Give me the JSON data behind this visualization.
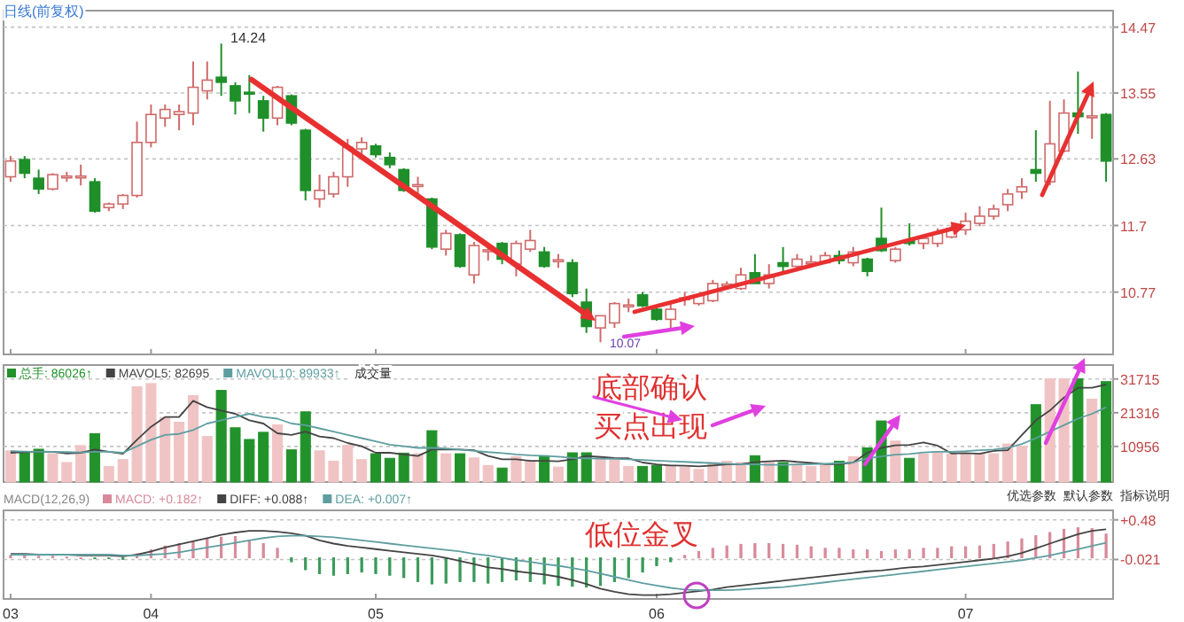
{
  "chart_data": [
    {
      "type": "candlestick",
      "categories": [
        "03",
        null,
        null,
        null,
        null,
        null,
        null,
        null,
        null,
        null,
        "04",
        null,
        null,
        null,
        null,
        null,
        null,
        null,
        null,
        null,
        null,
        null,
        null,
        null,
        null,
        null,
        "05",
        null,
        null,
        null,
        null,
        null,
        null,
        null,
        null,
        null,
        null,
        null,
        null,
        null,
        null,
        null,
        null,
        null,
        null,
        null,
        "06",
        null,
        null,
        null,
        null,
        null,
        null,
        null,
        null,
        null,
        null,
        null,
        null,
        null,
        null,
        null,
        null,
        null,
        null,
        null,
        null,
        null,
        "07",
        null,
        null,
        null,
        null,
        null,
        null,
        null,
        null,
        null,
        null
      ],
      "ohlc": [
        [
          12.38,
          12.67,
          12.31,
          12.6
        ],
        [
          12.62,
          12.67,
          12.36,
          12.43
        ],
        [
          12.36,
          12.48,
          12.14,
          12.21
        ],
        [
          12.21,
          12.43,
          12.19,
          12.41
        ],
        [
          12.38,
          12.45,
          12.31,
          12.39
        ],
        [
          12.38,
          12.55,
          12.26,
          12.39
        ],
        [
          12.31,
          12.36,
          11.88,
          11.9
        ],
        [
          11.95,
          12.02,
          11.9,
          12.0
        ],
        [
          12.0,
          12.14,
          11.93,
          12.12
        ],
        [
          12.12,
          13.15,
          12.09,
          12.86
        ],
        [
          12.86,
          13.39,
          12.79,
          13.25
        ],
        [
          13.2,
          13.39,
          13.08,
          13.32
        ],
        [
          13.25,
          13.39,
          13.03,
          13.29
        ],
        [
          13.27,
          13.99,
          13.1,
          13.63
        ],
        [
          13.58,
          13.99,
          13.46,
          13.73
        ],
        [
          13.77,
          14.24,
          13.51,
          13.7
        ],
        [
          13.65,
          13.7,
          13.25,
          13.44
        ],
        [
          13.56,
          13.8,
          13.27,
          13.55
        ],
        [
          13.44,
          13.51,
          13.01,
          13.2
        ],
        [
          13.2,
          13.65,
          13.1,
          13.63
        ],
        [
          13.51,
          13.53,
          13.1,
          13.13
        ],
        [
          13.03,
          13.05,
          12.05,
          12.19
        ],
        [
          12.07,
          12.41,
          11.95,
          12.19
        ],
        [
          12.14,
          12.45,
          12.09,
          12.38
        ],
        [
          12.38,
          12.91,
          12.24,
          12.79
        ],
        [
          12.77,
          12.93,
          12.67,
          12.86
        ],
        [
          12.81,
          12.84,
          12.65,
          12.69
        ],
        [
          12.65,
          12.72,
          12.5,
          12.55
        ],
        [
          12.48,
          12.5,
          12.17,
          12.19
        ],
        [
          12.26,
          12.38,
          12.14,
          12.27
        ],
        [
          12.07,
          12.09,
          11.37,
          11.4
        ],
        [
          11.37,
          11.64,
          11.28,
          11.59
        ],
        [
          11.57,
          11.59,
          11.11,
          11.13
        ],
        [
          11.01,
          11.47,
          10.89,
          11.42
        ],
        [
          11.35,
          11.45,
          11.21,
          11.36
        ],
        [
          11.45,
          11.47,
          11.16,
          11.23
        ],
        [
          11.16,
          11.49,
          10.99,
          11.45
        ],
        [
          11.37,
          11.64,
          11.33,
          11.49
        ],
        [
          11.33,
          11.4,
          11.11,
          11.13
        ],
        [
          11.21,
          11.3,
          11.11,
          11.22
        ],
        [
          11.18,
          11.23,
          10.7,
          10.75
        ],
        [
          10.63,
          10.82,
          10.2,
          10.29
        ],
        [
          10.27,
          10.44,
          10.07,
          10.44
        ],
        [
          10.34,
          10.63,
          10.27,
          10.61
        ],
        [
          10.58,
          10.68,
          10.49,
          10.59
        ],
        [
          10.73,
          10.77,
          10.56,
          10.58
        ],
        [
          10.53,
          10.58,
          10.37,
          10.39
        ],
        [
          10.39,
          10.63,
          10.25,
          10.53
        ],
        [
          10.68,
          10.77,
          10.58,
          10.69
        ],
        [
          10.61,
          10.75,
          10.58,
          10.73
        ],
        [
          10.65,
          10.94,
          10.63,
          10.89
        ],
        [
          10.87,
          10.92,
          10.82,
          10.88
        ],
        [
          10.82,
          11.11,
          10.8,
          11.01
        ],
        [
          11.04,
          11.3,
          10.89,
          10.89
        ],
        [
          10.89,
          11.16,
          10.82,
          11.01
        ],
        [
          11.18,
          11.4,
          11.06,
          11.13
        ],
        [
          11.13,
          11.3,
          11.06,
          11.23
        ],
        [
          11.18,
          11.28,
          11.11,
          11.19
        ],
        [
          11.18,
          11.33,
          11.16,
          11.28
        ],
        [
          11.28,
          11.35,
          11.16,
          11.21
        ],
        [
          11.18,
          11.4,
          11.13,
          11.33
        ],
        [
          11.23,
          11.25,
          10.99,
          11.06
        ],
        [
          11.52,
          11.95,
          11.33,
          11.35
        ],
        [
          11.21,
          11.4,
          11.18,
          11.37
        ],
        [
          11.49,
          11.73,
          11.42,
          11.45
        ],
        [
          11.45,
          11.54,
          11.37,
          11.52
        ],
        [
          11.45,
          11.66,
          11.4,
          11.59
        ],
        [
          11.54,
          11.71,
          11.52,
          11.66
        ],
        [
          11.64,
          11.88,
          11.57,
          11.76
        ],
        [
          11.73,
          11.97,
          11.69,
          11.83
        ],
        [
          11.83,
          11.99,
          11.78,
          11.93
        ],
        [
          11.99,
          12.21,
          11.9,
          12.14
        ],
        [
          12.17,
          12.36,
          12.07,
          12.24
        ],
        [
          12.48,
          13.03,
          12.31,
          12.43
        ],
        [
          12.31,
          13.44,
          12.26,
          12.84
        ],
        [
          12.74,
          13.46,
          12.72,
          13.27
        ],
        [
          13.27,
          13.85,
          12.98,
          13.22
        ],
        [
          13.22,
          13.51,
          12.91,
          13.23
        ],
        [
          13.25,
          13.27,
          12.31,
          12.6
        ]
      ],
      "ylim": [
        9.9,
        14.7
      ],
      "yticks": [
        10.77,
        11.7,
        12.63,
        13.55,
        14.47
      ],
      "grid": "y",
      "tick_labels": "y",
      "annotations": [
        "日线(前复权)",
        "14.24",
        "10.07"
      ]
    },
    {
      "type": "bar",
      "categories": [
        "03",
        null,
        null,
        null,
        null,
        null,
        null,
        null,
        null,
        null,
        "04",
        null,
        null,
        null,
        null,
        null,
        null,
        null,
        null,
        null,
        null,
        null,
        null,
        null,
        null,
        null,
        "05",
        null,
        null,
        null,
        null,
        null,
        null,
        null,
        null,
        null,
        null,
        null,
        null,
        null,
        null,
        null,
        null,
        null,
        null,
        null,
        "06",
        null,
        null,
        null,
        null,
        null,
        null,
        null,
        null,
        null,
        null,
        null,
        null,
        null,
        null,
        null,
        null,
        null,
        null,
        null,
        null,
        null,
        "07",
        null,
        null,
        null,
        null,
        null,
        null,
        null,
        null,
        null,
        null
      ],
      "series": [
        {
          "name": "总手: 86026↑",
          "type": "bar",
          "colors": [
            "#f0c4c4",
            "#22922b",
            "#22922b",
            "#f0c4c4",
            "#f0c4c4",
            "#f0c4c4",
            "#22922b",
            "#f0c4c4",
            "#f0c4c4",
            "#f0c4c4",
            "#f0c4c4",
            "#f0c4c4",
            "#f0c4c4",
            "#f0c4c4",
            "#f0c4c4",
            "#22922b",
            "#22922b",
            "#22922b",
            "#22922b",
            "#f0c4c4",
            "#22922b",
            "#22922b",
            "#f0c4c4",
            "#f0c4c4",
            "#f0c4c4",
            "#f0c4c4",
            "#22922b",
            "#22922b",
            "#22922b",
            "#f0c4c4",
            "#22922b",
            "#f0c4c4",
            "#22922b",
            "#f0c4c4",
            "#f0c4c4",
            "#22922b",
            "#f0c4c4",
            "#f0c4c4",
            "#22922b",
            "#f0c4c4",
            "#22922b",
            "#22922b",
            "#f0c4c4",
            "#f0c4c4",
            "#f0c4c4",
            "#22922b",
            "#22922b",
            "#f0c4c4",
            "#f0c4c4",
            "#f0c4c4",
            "#f0c4c4",
            "#f0c4c4",
            "#f0c4c4",
            "#22922b",
            "#f0c4c4",
            "#22922b",
            "#f0c4c4",
            "#f0c4c4",
            "#f0c4c4",
            "#22922b",
            "#f0c4c4",
            "#22922b",
            "#22922b",
            "#f0c4c4",
            "#22922b",
            "#f0c4c4",
            "#f0c4c4",
            "#f0c4c4",
            "#f0c4c4",
            "#f0c4c4",
            "#f0c4c4",
            "#f0c4c4",
            "#f0c4c4",
            "#22922b",
            "#f0c4c4",
            "#f0c4c4",
            "#22922b",
            "#f0c4c4",
            "#22922b"
          ],
          "values": [
            9600,
            9200,
            10100,
            8700,
            6000,
            11200,
            14900,
            4800,
            6900,
            29300,
            30300,
            19900,
            18400,
            26600,
            14000,
            28200,
            16700,
            13100,
            15300,
            17600,
            9900,
            21600,
            9600,
            6400,
            11300,
            6900,
            8700,
            7300,
            8900,
            8700,
            15800,
            8700,
            8700,
            7400,
            5100,
            4300,
            7800,
            6500,
            8100,
            4600,
            9000,
            9000,
            7800,
            6900,
            4800,
            4800,
            5100,
            5100,
            4600,
            3900,
            6000,
            6400,
            6000,
            8100,
            6000,
            6000,
            5100,
            4800,
            5100,
            6400,
            7800,
            10500,
            18800,
            12600,
            7300,
            8700,
            9200,
            8700,
            8700,
            8700,
            8700,
            11700,
            11000,
            23800,
            31800,
            31800,
            31800,
            25500,
            30900
          ]
        },
        {
          "name": "MAVOL5: 82695",
          "type": "line",
          "color": "#444444",
          "values": [
            9000,
            9200,
            9400,
            9300,
            8800,
            9000,
            10000,
            9300,
            8700,
            13000,
            17000,
            20000,
            20000,
            25000,
            23000,
            22000,
            21000,
            19000,
            18000,
            15000,
            14500,
            15500,
            14000,
            13500,
            12000,
            11000,
            9000,
            9000,
            8500,
            8000,
            10000,
            10000,
            10000,
            9800,
            8000,
            7000,
            7000,
            6500,
            6500,
            6400,
            7000,
            8000,
            7700,
            7400,
            7300,
            6000,
            5400,
            5100,
            5000,
            4800,
            5100,
            5400,
            5500,
            6100,
            6400,
            6600,
            6200,
            5900,
            5500,
            5500,
            6000,
            9000,
            10500,
            11300,
            11400,
            12200,
            11200,
            8800,
            8900,
            8700,
            9600,
            9800,
            14400,
            19000,
            22000,
            26000,
            29000,
            29000,
            30000
          ]
        },
        {
          "name": "MAVOL10: 89933↑",
          "type": "line",
          "color": "#5f9ea0",
          "values": [
            9500,
            9400,
            9300,
            9300,
            9200,
            9100,
            9300,
            9300,
            9000,
            11000,
            13000,
            14500,
            14800,
            16000,
            18000,
            19000,
            20000,
            21000,
            20000,
            19500,
            18000,
            17500,
            16500,
            15500,
            14500,
            13500,
            12500,
            11500,
            11000,
            10500,
            10500,
            10300,
            10000,
            9600,
            9200,
            8900,
            8500,
            8200,
            8000,
            7800,
            7400,
            7300,
            7200,
            7100,
            7000,
            6800,
            6600,
            6400,
            6200,
            6000,
            5800,
            5600,
            5500,
            5400,
            5300,
            5300,
            5400,
            5500,
            5600,
            5800,
            6000,
            7300,
            7900,
            8400,
            8600,
            9100,
            9300,
            9300,
            9500,
            9800,
            10000,
            10500,
            11700,
            13500,
            15500,
            17500,
            19500,
            21000,
            23000
          ]
        }
      ],
      "ylim": [
        0,
        36000
      ],
      "yticks": [
        10956,
        21316,
        31715
      ],
      "grid": "y",
      "tick_labels": "y",
      "legend": "top left",
      "annotations": [
        "底部确认",
        "买点出现",
        "成交量",
        "优选参数",
        "默认参数",
        "指标说明"
      ]
    },
    {
      "type": "bar",
      "categories": [
        "03",
        null,
        null,
        null,
        null,
        null,
        null,
        null,
        null,
        null,
        "04",
        null,
        null,
        null,
        null,
        null,
        null,
        null,
        null,
        null,
        null,
        null,
        null,
        null,
        null,
        null,
        "05",
        null,
        null,
        null,
        null,
        null,
        null,
        null,
        null,
        null,
        null,
        null,
        null,
        null,
        null,
        null,
        null,
        null,
        null,
        null,
        "06",
        null,
        null,
        null,
        null,
        null,
        null,
        null,
        null,
        null,
        null,
        null,
        null,
        null,
        null,
        null,
        null,
        null,
        null,
        null,
        null,
        null,
        "07",
        null,
        null,
        null,
        null,
        null,
        null,
        null,
        null,
        null,
        null
      ],
      "series": [
        {
          "name": "MACD: +0.182↑",
          "type": "bar",
          "colors": [
            "#d88a9a",
            "#d88a9a",
            "#d88a9a",
            "#d88a9a",
            "#d88a9a",
            "#d88a9a",
            "#3a9a5a",
            "#3a9a5a",
            "#3a9a5a",
            "#d88a9a",
            "#d88a9a",
            "#d88a9a",
            "#d88a9a",
            "#d88a9a",
            "#d88a9a",
            "#d88a9a",
            "#d88a9a",
            "#d88a9a",
            "#d88a9a",
            "#d88a9a",
            "#3a9a5a",
            "#3a9a5a",
            "#3a9a5a",
            "#3a9a5a",
            "#3a9a5a",
            "#3a9a5a",
            "#3a9a5a",
            "#3a9a5a",
            "#3a9a5a",
            "#3a9a5a",
            "#3a9a5a",
            "#3a9a5a",
            "#3a9a5a",
            "#3a9a5a",
            "#3a9a5a",
            "#3a9a5a",
            "#3a9a5a",
            "#3a9a5a",
            "#3a9a5a",
            "#3a9a5a",
            "#3a9a5a",
            "#3a9a5a",
            "#3a9a5a",
            "#3a9a5a",
            "#3a9a5a",
            "#3a9a5a",
            "#3a9a5a",
            "#3a9a5a",
            "#d88a9a",
            "#d88a9a",
            "#d88a9a",
            "#d88a9a",
            "#d88a9a",
            "#d88a9a",
            "#d88a9a",
            "#d88a9a",
            "#d88a9a",
            "#d88a9a",
            "#d88a9a",
            "#d88a9a",
            "#d88a9a",
            "#d88a9a",
            "#d88a9a",
            "#d88a9a",
            "#d88a9a",
            "#d88a9a",
            "#d88a9a",
            "#d88a9a",
            "#d88a9a",
            "#d88a9a",
            "#d88a9a",
            "#d88a9a",
            "#d88a9a",
            "#d88a9a",
            "#d88a9a",
            "#d88a9a",
            "#d88a9a",
            "#d88a9a",
            "#d88a9a"
          ],
          "values": [
            0.03,
            0.03,
            0.02,
            0.02,
            0.01,
            0.0,
            -0.01,
            -0.01,
            -0.02,
            0.05,
            0.1,
            0.15,
            0.18,
            0.2,
            0.24,
            0.26,
            0.27,
            0.22,
            0.18,
            0.12,
            -0.05,
            -0.15,
            -0.2,
            -0.22,
            -0.2,
            -0.18,
            -0.2,
            -0.22,
            -0.25,
            -0.3,
            -0.33,
            -0.32,
            -0.3,
            -0.3,
            -0.32,
            -0.3,
            -0.28,
            -0.3,
            -0.33,
            -0.35,
            -0.36,
            -0.37,
            -0.35,
            -0.3,
            -0.25,
            -0.18,
            -0.1,
            -0.05,
            0.03,
            0.08,
            0.12,
            0.15,
            0.17,
            0.18,
            0.18,
            0.17,
            0.16,
            0.14,
            0.12,
            0.12,
            0.1,
            0.1,
            0.08,
            0.1,
            0.1,
            0.12,
            0.12,
            0.14,
            0.14,
            0.15,
            0.17,
            0.2,
            0.24,
            0.28,
            0.32,
            0.36,
            0.38,
            0.37,
            0.3
          ]
        },
        {
          "name": "DIFF: +0.088↑",
          "type": "line",
          "color": "#444444",
          "values": [
            0.05,
            0.05,
            0.04,
            0.04,
            0.04,
            0.03,
            0.03,
            0.03,
            0.02,
            0.04,
            0.08,
            0.13,
            0.17,
            0.21,
            0.25,
            0.29,
            0.32,
            0.34,
            0.34,
            0.33,
            0.31,
            0.28,
            0.22,
            0.18,
            0.15,
            0.13,
            0.11,
            0.09,
            0.07,
            0.05,
            0.03,
            0.0,
            -0.04,
            -0.08,
            -0.12,
            -0.14,
            -0.17,
            -0.19,
            -0.21,
            -0.24,
            -0.28,
            -0.33,
            -0.39,
            -0.43,
            -0.46,
            -0.47,
            -0.47,
            -0.46,
            -0.44,
            -0.42,
            -0.4,
            -0.37,
            -0.35,
            -0.33,
            -0.31,
            -0.29,
            -0.27,
            -0.25,
            -0.23,
            -0.21,
            -0.19,
            -0.17,
            -0.16,
            -0.14,
            -0.12,
            -0.11,
            -0.09,
            -0.07,
            -0.05,
            -0.03,
            -0.01,
            0.02,
            0.06,
            0.12,
            0.18,
            0.24,
            0.3,
            0.34,
            0.36
          ]
        },
        {
          "name": "DEA: +0.007↑",
          "type": "line",
          "color": "#5f9ea0",
          "values": [
            0.04,
            0.04,
            0.04,
            0.04,
            0.04,
            0.04,
            0.04,
            0.04,
            0.03,
            0.03,
            0.04,
            0.05,
            0.07,
            0.1,
            0.13,
            0.16,
            0.19,
            0.22,
            0.25,
            0.27,
            0.28,
            0.28,
            0.27,
            0.26,
            0.24,
            0.22,
            0.2,
            0.18,
            0.16,
            0.14,
            0.12,
            0.1,
            0.08,
            0.05,
            0.03,
            0.0,
            -0.03,
            -0.05,
            -0.08,
            -0.1,
            -0.13,
            -0.16,
            -0.2,
            -0.24,
            -0.28,
            -0.32,
            -0.35,
            -0.38,
            -0.4,
            -0.41,
            -0.41,
            -0.41,
            -0.4,
            -0.39,
            -0.38,
            -0.37,
            -0.35,
            -0.33,
            -0.31,
            -0.29,
            -0.27,
            -0.25,
            -0.23,
            -0.21,
            -0.19,
            -0.17,
            -0.15,
            -0.13,
            -0.11,
            -0.09,
            -0.07,
            -0.05,
            -0.03,
            0.0,
            0.03,
            0.07,
            0.11,
            0.15,
            0.19
          ]
        }
      ],
      "ylim": [
        -0.52,
        0.6
      ],
      "yticks": [
        {
          "value": 0.48,
          "label": "+0.48"
        },
        {
          "value": -0.021,
          "label": "-0.021"
        }
      ],
      "grid": "y",
      "legend": "top left",
      "annotations": [
        "MACD(12,26,9)",
        "低位金叉"
      ]
    }
  ]
}
